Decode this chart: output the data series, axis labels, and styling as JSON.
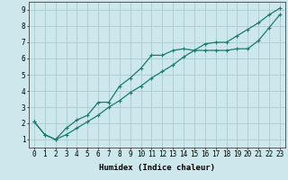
{
  "title": "",
  "xlabel": "Humidex (Indice chaleur)",
  "ylabel": "",
  "background_color": "#cce8ec",
  "grid_color": "#aacccc",
  "line_color": "#1a7a6e",
  "xlim": [
    -0.5,
    23.5
  ],
  "ylim": [
    0.5,
    9.5
  ],
  "xticks": [
    0,
    1,
    2,
    3,
    4,
    5,
    6,
    7,
    8,
    9,
    10,
    11,
    12,
    13,
    14,
    15,
    16,
    17,
    18,
    19,
    20,
    21,
    22,
    23
  ],
  "yticks": [
    1,
    2,
    3,
    4,
    5,
    6,
    7,
    8,
    9
  ],
  "line1_x": [
    0,
    1,
    2,
    3,
    4,
    5,
    6,
    7,
    8,
    9,
    10,
    11,
    12,
    13,
    14,
    15,
    16,
    17,
    18,
    19,
    20,
    21,
    22,
    23
  ],
  "line1_y": [
    2.1,
    1.3,
    1.0,
    1.7,
    2.2,
    2.5,
    3.3,
    3.3,
    4.3,
    4.8,
    5.4,
    6.2,
    6.2,
    6.5,
    6.6,
    6.5,
    6.5,
    6.5,
    6.5,
    6.6,
    6.6,
    7.1,
    7.9,
    8.7
  ],
  "line2_x": [
    0,
    1,
    2,
    3,
    4,
    5,
    6,
    7,
    8,
    9,
    10,
    11,
    12,
    13,
    14,
    15,
    16,
    17,
    18,
    19,
    20,
    21,
    22,
    23
  ],
  "line2_y": [
    2.1,
    1.3,
    1.0,
    1.3,
    1.7,
    2.1,
    2.5,
    3.0,
    3.4,
    3.9,
    4.3,
    4.8,
    5.2,
    5.6,
    6.1,
    6.5,
    6.9,
    7.0,
    7.0,
    7.4,
    7.8,
    8.2,
    8.7,
    9.1
  ],
  "tick_fontsize": 5.5,
  "xlabel_fontsize": 6.5,
  "marker_size": 3,
  "linewidth": 0.9
}
